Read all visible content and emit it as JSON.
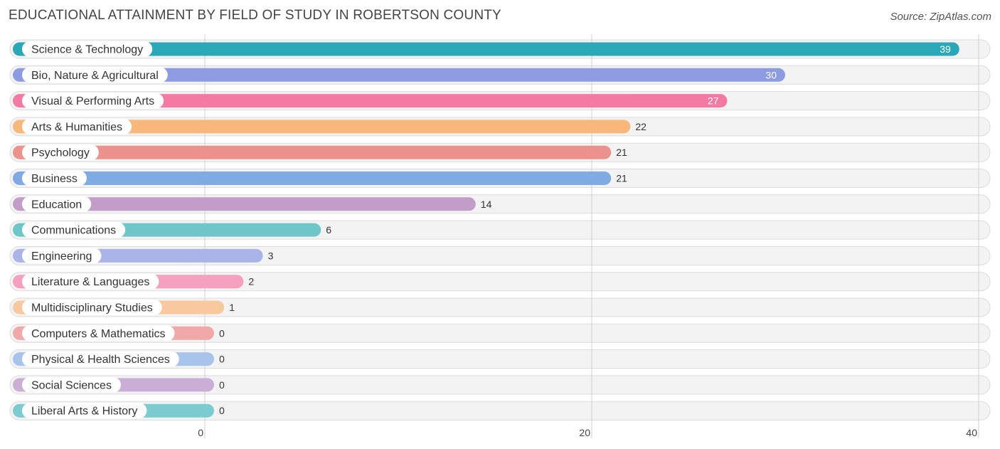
{
  "header": {
    "title": "EDUCATIONAL ATTAINMENT BY FIELD OF STUDY IN ROBERTSON COUNTY",
    "source": "Source: ZipAtlas.com"
  },
  "chart_data": {
    "type": "bar",
    "orientation": "horizontal",
    "title": "EDUCATIONAL ATTAINMENT BY FIELD OF STUDY IN ROBERTSON COUNTY",
    "xlabel": "",
    "ylabel": "",
    "xlim": [
      0,
      40
    ],
    "ticks": [
      0,
      20,
      40
    ],
    "tick_labels": [
      "0",
      "20",
      "40"
    ],
    "grid": true,
    "categories": [
      "Science & Technology",
      "Bio, Nature & Agricultural",
      "Visual & Performing Arts",
      "Arts & Humanities",
      "Psychology",
      "Business",
      "Education",
      "Communications",
      "Engineering",
      "Literature & Languages",
      "Multidisciplinary Studies",
      "Computers & Mathematics",
      "Physical & Health Sciences",
      "Social Sciences",
      "Liberal Arts & History"
    ],
    "values": [
      39,
      30,
      27,
      22,
      21,
      21,
      14,
      6,
      3,
      2,
      1,
      0,
      0,
      0,
      0
    ],
    "value_labels": [
      "39",
      "30",
      "27",
      "22",
      "21",
      "21",
      "14",
      "6",
      "3",
      "2",
      "1",
      "0",
      "0",
      "0",
      "0"
    ],
    "colors": [
      "#2aa8b8",
      "#8d9ce0",
      "#f37aa2",
      "#f8b87c",
      "#eb928c",
      "#7faae3",
      "#c19dc8",
      "#6ec6c8",
      "#aab4e8",
      "#f5a0be",
      "#f8c89e",
      "#f0a8a8",
      "#a8c4ec",
      "#cbaed6",
      "#7ccbd0"
    ]
  }
}
